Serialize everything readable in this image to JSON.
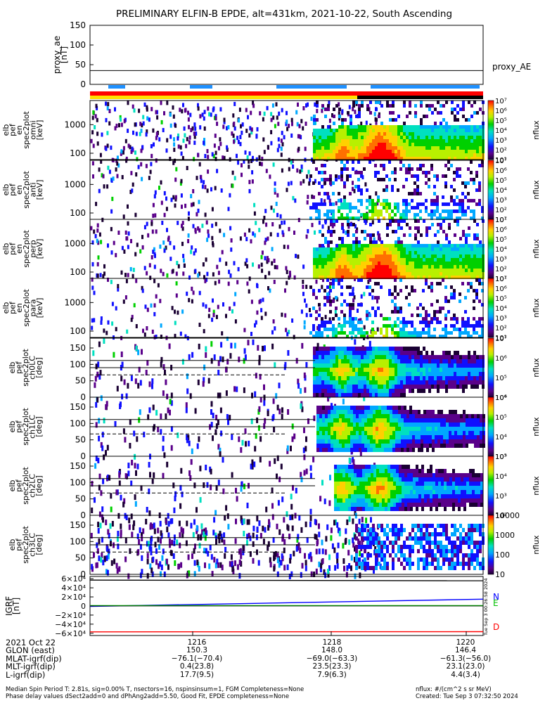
{
  "title": "PRELIMINARY ELFIN-B EPDE, alt=431km, 2021-10-22, South Ascending",
  "colors": {
    "red_bar": "#ff0000",
    "yellow_bar": "#ffe000",
    "black_bar": "#000000",
    "blue_bar": "#1e90ff",
    "trace_black": "#000000",
    "trace_blue": "#0000ff",
    "trace_green": "#00c000",
    "trace_red": "#ff0000"
  },
  "panels": {
    "proxy_ae": {
      "ylabel": "proxy_ae\n[nT]",
      "ticks": [
        "150",
        "100",
        "50",
        "0"
      ],
      "right_label": "proxy_AE"
    },
    "energy": [
      {
        "ylabel": "elb\npef\nen\nspec2plot\nomni\n[keV]",
        "ticks": [
          "1000",
          "100"
        ]
      },
      {
        "ylabel": "elb\npef\nen\nspec2plot\nanti\n[keV]",
        "ticks": [
          "1000",
          "100"
        ]
      },
      {
        "ylabel": "elb\npef\nen\nspec2plot\nperp\n[keV]",
        "ticks": [
          "1000",
          "100"
        ]
      },
      {
        "ylabel": "elb\npef\nen\nspec2plot\npara\n[keV]",
        "ticks": [
          "1000",
          "100"
        ]
      }
    ],
    "pitch": [
      {
        "ylabel": "elb\npef\nspec2plot\nch0LC\n[deg]",
        "ticks": [
          "150",
          "100",
          "50",
          "0"
        ]
      },
      {
        "ylabel": "elb\npef\nspec2plot\nch1LC\n[deg]",
        "ticks": [
          "150",
          "100",
          "50",
          "0"
        ]
      },
      {
        "ylabel": "elb\npef\nspec2plot\nch2LC\n[deg]",
        "ticks": [
          "150",
          "100",
          "50",
          "0"
        ]
      },
      {
        "ylabel": "elb\npef\nspec2plot\nch3LC\n[deg]",
        "ticks": [
          "150",
          "100",
          "50",
          "0"
        ]
      }
    ],
    "igrf": {
      "ylabel": "IGRF\n[nT]",
      "ticks": [
        "6×10⁴",
        "4×10⁴",
        "2×10⁴",
        "0",
        "−2×10⁴",
        "−4×10⁴",
        "−6×10⁴"
      ],
      "legend": [
        "N",
        "E",
        "D"
      ],
      "side_note": "Tue Sep 3 00:26:58 2024"
    }
  },
  "colorbars": {
    "label": "nflux",
    "energy_ticks": [
      "10⁷",
      "10⁶",
      "10⁵",
      "10⁴",
      "10³",
      "10²",
      "10¹"
    ],
    "pitch0_ticks": [
      "10⁷",
      "10⁶",
      "10⁵",
      "10⁴"
    ],
    "pitch1_ticks": [
      "10⁶",
      "10⁵",
      "10⁴",
      "10³"
    ],
    "pitch2_ticks": [
      "10⁵",
      "10⁴",
      "10³",
      "10²"
    ],
    "pitch3_ticks": [
      "10000",
      "1000",
      "100",
      "10"
    ]
  },
  "chart_data": {
    "type": "heatmap",
    "xaxis": {
      "labels": [
        "1216",
        "1218",
        "1220"
      ],
      "unit": "HHMM UT"
    },
    "proxy_ae": {
      "value": 35,
      "ylim": [
        0,
        150
      ]
    },
    "energy_ylim_keV": [
      60,
      7000
    ],
    "pitch_ylim_deg": [
      0,
      180
    ],
    "pitch_reference_lines_deg": [
      112,
      90,
      68
    ],
    "igrf_ylim": [
      -65000,
      65000
    ],
    "igrf_series": [
      {
        "name": "N",
        "values": [
          -1000,
          15000
        ]
      },
      {
        "name": "E",
        "values": [
          1000,
          800
        ]
      },
      {
        "name": "D",
        "values": [
          -57000,
          -56500
        ]
      },
      {
        "name": "",
        "values": [
          57000,
          55500
        ]
      }
    ],
    "ephemeris": [
      {
        "label": "2021 Oct 22",
        "values": [
          "1216",
          "1218",
          "1220"
        ]
      },
      {
        "label": "GLON (east)",
        "values": [
          "150.3",
          "148.0",
          "146.4"
        ]
      },
      {
        "label": "MLAT-igrf(dip)",
        "values": [
          "−76.1(−70.4)",
          "−69.0(−63.3)",
          "−61.3(−56.0)"
        ]
      },
      {
        "label": "MLT-igrf(dip)",
        "values": [
          "0.4(23.8)",
          "23.5(23.3)",
          "23.1(23.0)"
        ]
      },
      {
        "label": "L-igrf(dip)",
        "values": [
          "17.7(9.5)",
          "7.9(6.3)",
          "4.4(3.4)"
        ]
      }
    ]
  },
  "footer": {
    "line1_left": "Median Spin Period T: 2.81s, sig=0.00% T, nsectors=16, nspinsinsum=1, FGM Completeness=None",
    "line1_right": "nflux: #/(cm^2 s sr MeV)",
    "line2_left": "Phase delay values dSect2add=0 and dPhAng2add=5.50, Good Fit, EPDE completeness=None",
    "line2_right": "Created: Tue Sep  3 07:32:50 2024"
  }
}
